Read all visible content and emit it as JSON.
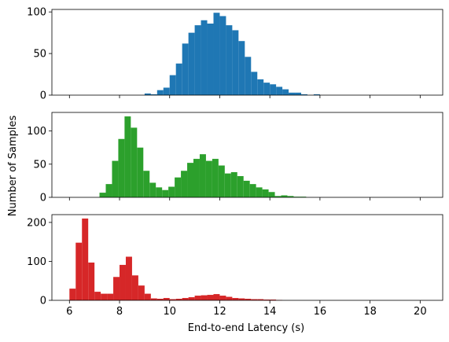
{
  "chart_data": {
    "type": "bar",
    "xlabel": "End-to-end Latency (s)",
    "ylabel": "Number of Samples",
    "xlim": [
      5.3,
      20.9
    ],
    "xticks": [
      "6",
      "8",
      "10",
      "12",
      "14",
      "16",
      "18",
      "20"
    ],
    "panels": [
      {
        "color": "#1f77b4",
        "ylim": [
          0,
          103
        ],
        "yticks": [
          "0",
          "50",
          "100"
        ],
        "bins": [
          [
            9.0,
            2
          ],
          [
            9.25,
            1
          ],
          [
            9.5,
            6
          ],
          [
            9.75,
            9
          ],
          [
            10.0,
            24
          ],
          [
            10.25,
            38
          ],
          [
            10.5,
            62
          ],
          [
            10.75,
            75
          ],
          [
            11.0,
            84
          ],
          [
            11.25,
            90
          ],
          [
            11.5,
            86
          ],
          [
            11.75,
            99
          ],
          [
            12.0,
            95
          ],
          [
            12.25,
            84
          ],
          [
            12.5,
            78
          ],
          [
            12.75,
            65
          ],
          [
            13.0,
            46
          ],
          [
            13.25,
            28
          ],
          [
            13.5,
            19
          ],
          [
            13.75,
            15
          ],
          [
            14.0,
            13
          ],
          [
            14.25,
            10
          ],
          [
            14.5,
            7
          ],
          [
            14.75,
            3
          ],
          [
            15.0,
            3
          ],
          [
            15.25,
            1
          ],
          [
            15.5,
            0
          ],
          [
            15.75,
            1
          ]
        ]
      },
      {
        "color": "#2ca02c",
        "ylim": [
          0,
          128
        ],
        "yticks": [
          "0",
          "50",
          "100"
        ],
        "bins": [
          [
            7.2,
            7
          ],
          [
            7.45,
            20
          ],
          [
            7.7,
            55
          ],
          [
            7.95,
            88
          ],
          [
            8.2,
            122
          ],
          [
            8.45,
            105
          ],
          [
            8.7,
            75
          ],
          [
            8.95,
            40
          ],
          [
            9.2,
            22
          ],
          [
            9.45,
            15
          ],
          [
            9.7,
            11
          ],
          [
            9.95,
            16
          ],
          [
            10.2,
            30
          ],
          [
            10.45,
            40
          ],
          [
            10.7,
            52
          ],
          [
            10.95,
            58
          ],
          [
            11.2,
            65
          ],
          [
            11.45,
            55
          ],
          [
            11.7,
            58
          ],
          [
            11.95,
            48
          ],
          [
            12.2,
            36
          ],
          [
            12.45,
            38
          ],
          [
            12.7,
            32
          ],
          [
            12.95,
            25
          ],
          [
            13.2,
            20
          ],
          [
            13.45,
            15
          ],
          [
            13.7,
            12
          ],
          [
            13.95,
            8
          ],
          [
            14.2,
            2
          ],
          [
            14.45,
            3
          ],
          [
            14.7,
            2
          ],
          [
            14.95,
            1
          ],
          [
            15.2,
            1
          ]
        ]
      },
      {
        "color": "#d62728",
        "ylim": [
          0,
          220
        ],
        "yticks": [
          "0",
          "100",
          "200"
        ],
        "bins": [
          [
            6.0,
            30
          ],
          [
            6.25,
            148
          ],
          [
            6.5,
            210
          ],
          [
            6.75,
            97
          ],
          [
            7.0,
            22
          ],
          [
            7.25,
            17
          ],
          [
            7.5,
            17
          ],
          [
            7.75,
            60
          ],
          [
            8.0,
            91
          ],
          [
            8.25,
            112
          ],
          [
            8.5,
            64
          ],
          [
            8.75,
            38
          ],
          [
            9.0,
            17
          ],
          [
            9.25,
            5
          ],
          [
            9.5,
            4
          ],
          [
            9.75,
            6
          ],
          [
            10.0,
            3
          ],
          [
            10.25,
            4
          ],
          [
            10.5,
            6
          ],
          [
            10.75,
            8
          ],
          [
            11.0,
            12
          ],
          [
            11.25,
            13
          ],
          [
            11.5,
            14
          ],
          [
            11.75,
            16
          ],
          [
            12.0,
            12
          ],
          [
            12.25,
            9
          ],
          [
            12.5,
            6
          ],
          [
            12.75,
            5
          ],
          [
            13.0,
            4
          ],
          [
            13.25,
            3
          ],
          [
            13.5,
            3
          ],
          [
            13.75,
            2
          ],
          [
            14.0,
            2
          ],
          [
            14.25,
            1
          ]
        ]
      }
    ]
  }
}
